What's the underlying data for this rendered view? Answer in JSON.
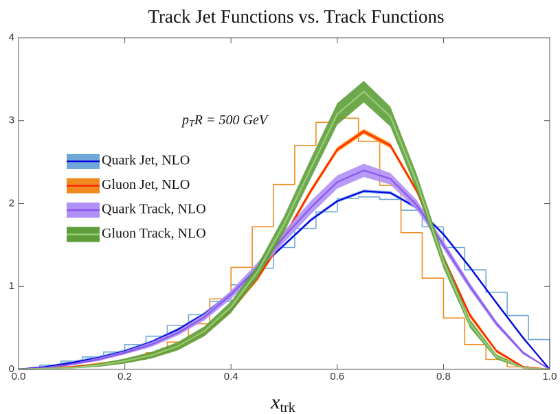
{
  "chart_data": {
    "type": "line",
    "title": "Track Jet Functions vs. Track Functions",
    "x_label": {
      "base": "x",
      "sub": "trk"
    },
    "annotation": {
      "var": "p",
      "sub": "T",
      "rest": "R = 500 GeV"
    },
    "x": [
      0,
      0.05,
      0.1,
      0.15,
      0.2,
      0.25,
      0.3,
      0.35,
      0.4,
      0.45,
      0.5,
      0.55,
      0.6,
      0.65,
      0.7,
      0.75,
      0.8,
      0.85,
      0.9,
      0.95,
      1.0
    ],
    "xlim": [
      0,
      1
    ],
    "ylim": [
      0,
      4
    ],
    "xticks": [
      {
        "value": 0,
        "label": "0.0"
      },
      0.2,
      0.4,
      0.6,
      0.8,
      {
        "value": 1,
        "label": "1.0"
      }
    ],
    "yticks": [
      0,
      1,
      2,
      3,
      4
    ],
    "series": [
      {
        "name": "Quark Jet, NLO",
        "color": "#0000dd",
        "band_color": "#7fb0e8",
        "values": [
          0,
          0.03,
          0.08,
          0.14,
          0.22,
          0.33,
          0.48,
          0.67,
          0.92,
          1.2,
          1.5,
          1.8,
          2.03,
          2.15,
          2.13,
          1.95,
          1.63,
          1.23,
          0.8,
          0.38,
          0
        ],
        "lower": [
          0,
          0.02,
          0.06,
          0.12,
          0.2,
          0.31,
          0.46,
          0.65,
          0.9,
          1.18,
          1.48,
          1.78,
          2.01,
          2.13,
          2.11,
          1.93,
          1.61,
          1.21,
          0.78,
          0.36,
          0
        ],
        "upper": [
          0,
          0.04,
          0.1,
          0.16,
          0.24,
          0.35,
          0.5,
          0.69,
          0.94,
          1.22,
          1.52,
          1.82,
          2.05,
          2.17,
          2.15,
          1.97,
          1.65,
          1.25,
          0.82,
          0.4,
          0
        ],
        "histogram": {
          "color": "#6fa8d8",
          "bins": [
            0,
            0.04,
            0.08,
            0.12,
            0.16,
            0.2,
            0.24,
            0.28,
            0.32,
            0.36,
            0.4,
            0.44,
            0.48,
            0.52,
            0.56,
            0.6,
            0.64,
            0.68,
            0.72,
            0.76,
            0.8,
            0.84,
            0.88,
            0.92,
            0.96,
            1.0
          ],
          "values": [
            0.01,
            0.05,
            0.1,
            0.15,
            0.21,
            0.3,
            0.4,
            0.53,
            0.66,
            0.82,
            1.02,
            1.22,
            1.47,
            1.7,
            1.9,
            2.06,
            2.08,
            2.05,
            1.92,
            1.72,
            1.47,
            1.2,
            0.93,
            0.65,
            0.36
          ]
        }
      },
      {
        "name": "Gluon Jet, NLO",
        "color": "#ff2200",
        "band_color": "#ff8800",
        "values": [
          0,
          0.01,
          0.03,
          0.06,
          0.1,
          0.17,
          0.28,
          0.45,
          0.72,
          1.1,
          1.6,
          2.15,
          2.65,
          2.87,
          2.7,
          2.15,
          1.35,
          0.65,
          0.22,
          0.03,
          0
        ],
        "lower": [
          0,
          0,
          0.02,
          0.04,
          0.08,
          0.14,
          0.25,
          0.42,
          0.69,
          1.07,
          1.57,
          2.12,
          2.62,
          2.84,
          2.67,
          2.12,
          1.32,
          0.62,
          0.2,
          0.02,
          0
        ],
        "upper": [
          0,
          0.02,
          0.04,
          0.08,
          0.12,
          0.2,
          0.31,
          0.48,
          0.75,
          1.13,
          1.63,
          2.18,
          2.68,
          2.9,
          2.73,
          2.18,
          1.38,
          0.68,
          0.24,
          0.04,
          0
        ],
        "histogram": {
          "color": "#f08a1e",
          "bins": [
            0,
            0.04,
            0.08,
            0.12,
            0.16,
            0.2,
            0.24,
            0.28,
            0.32,
            0.36,
            0.4,
            0.44,
            0.48,
            0.52,
            0.56,
            0.6,
            0.64,
            0.68,
            0.72,
            0.76,
            0.8,
            0.84,
            0.88,
            0.92,
            0.96,
            1.0
          ],
          "values": [
            0,
            0.01,
            0.03,
            0.05,
            0.08,
            0.12,
            0.2,
            0.33,
            0.55,
            0.85,
            1.23,
            1.72,
            2.23,
            2.7,
            2.98,
            3.03,
            2.75,
            2.22,
            1.65,
            1.1,
            0.62,
            0.3,
            0.12,
            0.03,
            0
          ]
        }
      },
      {
        "name": "Quark Track, NLO",
        "color": "#8855ee",
        "band_color": "#b090f5",
        "values": [
          0,
          0.02,
          0.06,
          0.12,
          0.2,
          0.3,
          0.44,
          0.63,
          0.9,
          1.23,
          1.6,
          1.95,
          2.26,
          2.4,
          2.3,
          1.98,
          1.5,
          1.0,
          0.55,
          0.2,
          0
        ],
        "lower": [
          0,
          0.01,
          0.05,
          0.1,
          0.18,
          0.27,
          0.41,
          0.59,
          0.85,
          1.17,
          1.53,
          1.87,
          2.18,
          2.32,
          2.23,
          1.92,
          1.45,
          0.96,
          0.52,
          0.18,
          0
        ],
        "upper": [
          0,
          0.03,
          0.07,
          0.14,
          0.22,
          0.33,
          0.47,
          0.67,
          0.95,
          1.29,
          1.67,
          2.03,
          2.34,
          2.48,
          2.37,
          2.04,
          1.55,
          1.04,
          0.58,
          0.22,
          0
        ]
      },
      {
        "name": "Gluon Track, NLO",
        "color": "#9acd7a",
        "band_color": "#5e9e3a",
        "values": [
          0,
          0.01,
          0.02,
          0.05,
          0.1,
          0.17,
          0.28,
          0.46,
          0.75,
          1.18,
          1.75,
          2.42,
          3.08,
          3.35,
          3.05,
          2.25,
          1.3,
          0.55,
          0.15,
          0.02,
          0
        ],
        "lower": [
          0,
          0,
          0.01,
          0.03,
          0.07,
          0.13,
          0.23,
          0.4,
          0.68,
          1.1,
          1.65,
          2.3,
          2.95,
          3.22,
          2.93,
          2.15,
          1.22,
          0.5,
          0.12,
          0.01,
          0
        ],
        "upper": [
          0,
          0.02,
          0.03,
          0.07,
          0.13,
          0.21,
          0.33,
          0.52,
          0.82,
          1.26,
          1.85,
          2.54,
          3.21,
          3.48,
          3.17,
          2.35,
          1.38,
          0.6,
          0.18,
          0.03,
          0
        ]
      }
    ]
  }
}
